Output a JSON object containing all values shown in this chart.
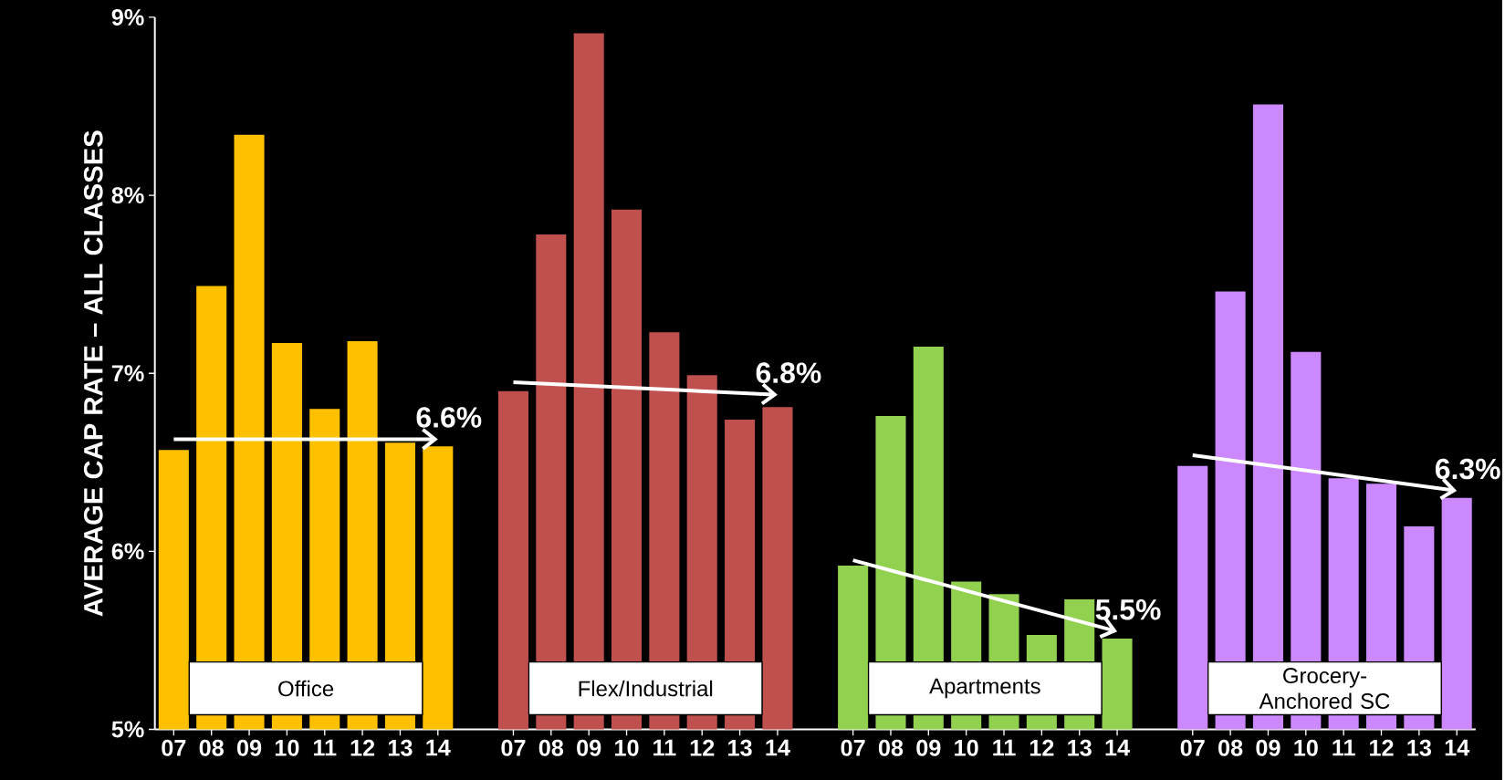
{
  "chart_data": {
    "type": "bar",
    "ylabel": "AVERAGE CAP RATE – ALL CLASSES",
    "categories": [
      "07",
      "08",
      "09",
      "10",
      "11",
      "12",
      "13",
      "14",
      null,
      "07",
      "08",
      "09",
      "10",
      "11",
      "12",
      "13",
      "14",
      null,
      "07",
      "08",
      "09",
      "10",
      "11",
      "12",
      "13",
      "14",
      null,
      "07",
      "08",
      "09",
      "10",
      "11",
      "12",
      "13",
      "14"
    ],
    "ylim": [
      5,
      9
    ],
    "yticks": [
      {
        "value": 5,
        "label": "5%"
      },
      {
        "value": 6,
        "label": "6%"
      },
      {
        "value": 7,
        "label": "7%"
      },
      {
        "value": 8,
        "label": "8%"
      },
      {
        "value": 9,
        "label": "9%"
      }
    ],
    "series": [
      {
        "values": [
          6.57,
          7.49,
          8.34,
          7.17,
          6.8,
          7.18,
          6.61,
          6.59,
          null,
          6.9,
          7.78,
          8.91,
          7.92,
          7.23,
          6.99,
          6.74,
          6.81,
          null,
          5.92,
          6.76,
          7.15,
          5.83,
          5.76,
          5.53,
          5.73,
          5.51,
          null,
          6.48,
          7.46,
          8.51,
          7.12,
          6.41,
          6.38,
          6.14,
          6.3
        ],
        "colors": [
          "#ffc000",
          "#ffc000",
          "#ffc000",
          "#ffc000",
          "#ffc000",
          "#ffc000",
          "#ffc000",
          "#ffc000",
          null,
          "#c0504d",
          "#c0504d",
          "#c0504d",
          "#c0504d",
          "#c0504d",
          "#c0504d",
          "#c0504d",
          "#c0504d",
          null,
          "#92d050",
          "#92d050",
          "#92d050",
          "#92d050",
          "#92d050",
          "#92d050",
          "#92d050",
          "#92d050",
          null,
          "#cc88ff",
          "#cc88ff",
          "#cc88ff",
          "#cc88ff",
          "#cc88ff",
          "#cc88ff",
          "#cc88ff",
          "#cc88ff"
        ]
      },
      {
        "type": "line",
        "color": "#ffffff",
        "values": [
          6.63,
          null,
          null,
          null,
          null,
          null,
          null,
          6.63,
          null,
          null,
          null,
          null,
          null,
          null,
          null,
          null,
          null,
          null,
          null,
          null,
          null,
          null,
          null,
          null,
          null,
          null,
          null,
          null,
          null,
          null,
          null,
          null,
          null,
          null,
          null
        ]
      },
      {
        "type": "line",
        "color": "#ffffff",
        "values": [
          null,
          null,
          null,
          null,
          null,
          null,
          null,
          null,
          null,
          6.95,
          null,
          null,
          null,
          null,
          null,
          null,
          6.88,
          null,
          null,
          null,
          null,
          null,
          null,
          null,
          null,
          null,
          null,
          null,
          null,
          null,
          null,
          null,
          null,
          null,
          null
        ]
      },
      {
        "type": "line",
        "color": "#ffffff",
        "values": [
          null,
          null,
          null,
          null,
          null,
          null,
          null,
          null,
          null,
          null,
          null,
          null,
          null,
          null,
          null,
          null,
          null,
          null,
          5.95,
          null,
          null,
          null,
          null,
          null,
          null,
          5.55,
          null,
          null,
          null,
          null,
          null,
          null,
          null,
          null,
          null
        ]
      },
      {
        "type": "line",
        "color": "#ffffff",
        "values": [
          null,
          null,
          null,
          null,
          null,
          null,
          null,
          null,
          null,
          null,
          null,
          null,
          null,
          null,
          null,
          null,
          null,
          null,
          null,
          null,
          null,
          null,
          null,
          null,
          null,
          null,
          null,
          6.54,
          null,
          null,
          null,
          null,
          null,
          null,
          6.34
        ]
      }
    ],
    "annotations": [
      "Office",
      "Flex/Industrial",
      "Apartments",
      "Grocery-Anchored SC",
      "6.6%",
      "6.8%",
      "5.5%",
      "6.3%"
    ],
    "grid": false,
    "line_style": "solid"
  }
}
